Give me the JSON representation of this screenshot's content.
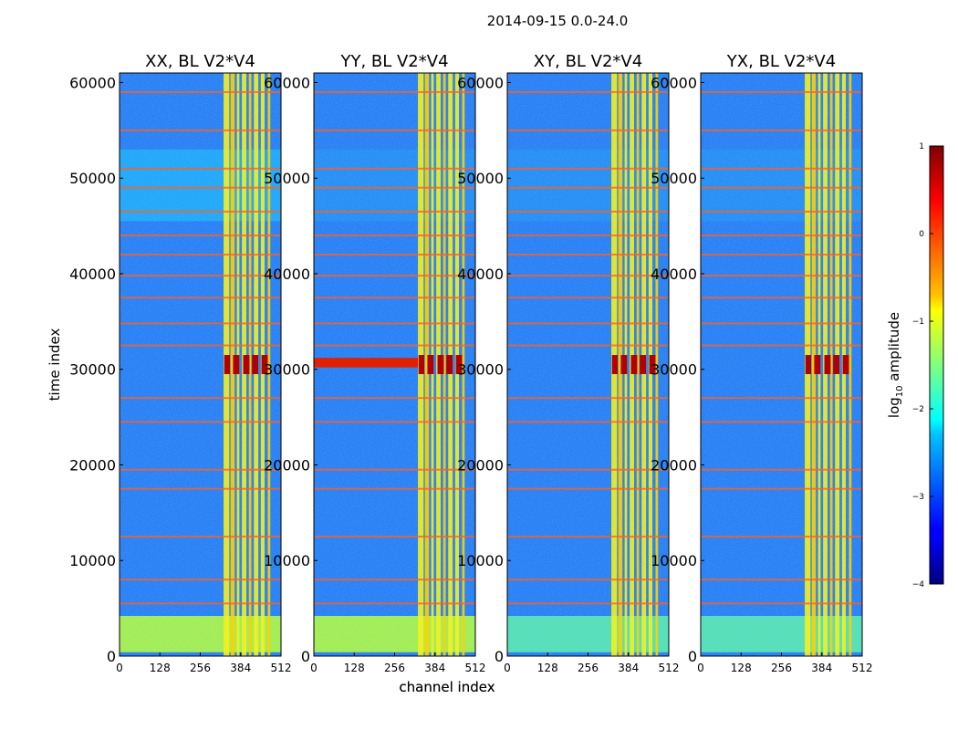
{
  "figure": {
    "suptitle": "2014-09-15 0.0-24.0"
  },
  "chart_data": [
    {
      "type": "heatmap",
      "title": "XX, BL V2*V4",
      "xlabel": "channel index",
      "ylabel": "time index",
      "xlim": [
        0,
        512
      ],
      "ylim": [
        0,
        61000
      ],
      "xticks": [
        "0",
        "128",
        "256",
        "384",
        "512"
      ],
      "yticks": [
        "0",
        "10000",
        "20000",
        "30000",
        "40000",
        "50000",
        "60000"
      ]
    },
    {
      "type": "heatmap",
      "title": "YY, BL V2*V4",
      "xlabel": "channel index",
      "ylabel": "",
      "xlim": [
        0,
        512
      ],
      "ylim": [
        0,
        61000
      ],
      "xticks": [
        "0",
        "128",
        "256",
        "384",
        "512"
      ],
      "yticks": [
        "0",
        "10000",
        "20000",
        "30000",
        "40000",
        "50000",
        "60000"
      ]
    },
    {
      "type": "heatmap",
      "title": "XY, BL V2*V4",
      "xlabel": "",
      "ylabel": "",
      "xlim": [
        0,
        512
      ],
      "ylim": [
        0,
        61000
      ],
      "xticks": [
        "0",
        "128",
        "256",
        "384",
        "512"
      ],
      "yticks": [
        "0",
        "10000",
        "20000",
        "30000",
        "40000",
        "50000",
        "60000"
      ]
    },
    {
      "type": "heatmap",
      "title": "YX, BL V2*V4",
      "xlabel": "",
      "ylabel": "",
      "xlim": [
        0,
        512
      ],
      "ylim": [
        0,
        61000
      ],
      "xticks": [
        "0",
        "128",
        "256",
        "384",
        "512"
      ],
      "yticks": [
        "0",
        "10000",
        "20000",
        "30000",
        "40000",
        "50000",
        "60000"
      ]
    }
  ],
  "colorbar": {
    "label_prefix": "log",
    "label_sub": "10",
    "label_suffix": " amplitude",
    "range": [
      -4,
      1
    ],
    "ticks": [
      "1",
      "0",
      "−1",
      "−2",
      "−3",
      "−4"
    ]
  }
}
